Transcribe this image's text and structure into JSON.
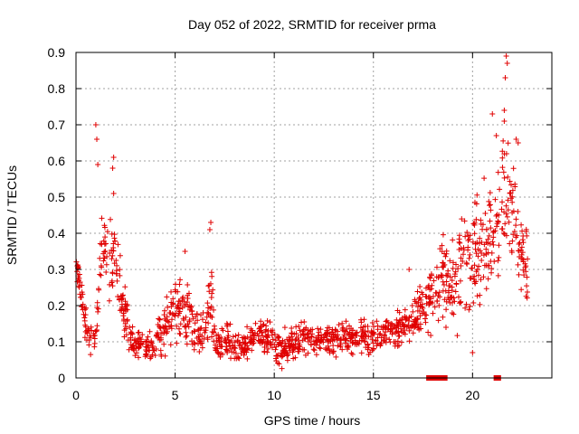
{
  "chart_data": {
    "type": "scatter",
    "title": "Day 052 of 2022, SRMTID for receiver prma",
    "xlabel": "GPS time / hours",
    "ylabel": "SRMTID / TECUs",
    "xlim": [
      0,
      24
    ],
    "ylim": [
      0,
      0.9
    ],
    "x_ticks": [
      0,
      5,
      10,
      15,
      20
    ],
    "x_tick_labels": [
      "0",
      "5",
      "10",
      "15",
      "20"
    ],
    "y_ticks": [
      0,
      0.1,
      0.2,
      0.3,
      0.4,
      0.5,
      0.6,
      0.7,
      0.8,
      0.9
    ],
    "y_tick_labels": [
      "0",
      "0.1",
      "0.2",
      "0.3",
      "0.4",
      "0.5",
      "0.6",
      "0.7",
      "0.8",
      "0.9"
    ],
    "grid": true,
    "marker": "+",
    "color": "#e00000",
    "envelope_hours": [
      0,
      0.3,
      0.6,
      1.0,
      1.3,
      1.7,
      2.0,
      2.3,
      2.7,
      3.0,
      3.5,
      4.0,
      4.5,
      5.0,
      5.5,
      6.0,
      6.5,
      6.8,
      7.0,
      7.5,
      8.0,
      8.5,
      9.0,
      9.5,
      10.0,
      10.5,
      11.0,
      11.5,
      12.0,
      13.0,
      14.0,
      15.0,
      16.0,
      16.5,
      17.0,
      17.5,
      18.0,
      18.5,
      19.0,
      19.5,
      20.0,
      20.5,
      21.0,
      21.5,
      21.7,
      22.0,
      22.5,
      22.8
    ],
    "envelope_mean": [
      0.32,
      0.22,
      0.1,
      0.12,
      0.38,
      0.3,
      0.36,
      0.22,
      0.12,
      0.1,
      0.08,
      0.1,
      0.14,
      0.2,
      0.18,
      0.14,
      0.12,
      0.22,
      0.1,
      0.1,
      0.08,
      0.09,
      0.11,
      0.12,
      0.09,
      0.08,
      0.1,
      0.11,
      0.1,
      0.11,
      0.11,
      0.11,
      0.13,
      0.14,
      0.17,
      0.2,
      0.22,
      0.28,
      0.26,
      0.3,
      0.34,
      0.38,
      0.38,
      0.48,
      0.55,
      0.45,
      0.33,
      0.3
    ],
    "envelope_spread": [
      0.04,
      0.05,
      0.05,
      0.06,
      0.08,
      0.1,
      0.08,
      0.08,
      0.06,
      0.04,
      0.03,
      0.04,
      0.06,
      0.08,
      0.08,
      0.06,
      0.06,
      0.1,
      0.05,
      0.05,
      0.04,
      0.04,
      0.04,
      0.04,
      0.04,
      0.04,
      0.04,
      0.04,
      0.04,
      0.04,
      0.04,
      0.04,
      0.04,
      0.04,
      0.05,
      0.06,
      0.08,
      0.1,
      0.12,
      0.14,
      0.14,
      0.14,
      0.14,
      0.16,
      0.18,
      0.14,
      0.1,
      0.1
    ],
    "points": [
      [
        1.0,
        0.7
      ],
      [
        1.05,
        0.66
      ],
      [
        1.1,
        0.59
      ],
      [
        1.9,
        0.61
      ],
      [
        1.85,
        0.58
      ],
      [
        1.9,
        0.51
      ],
      [
        5.5,
        0.35
      ],
      [
        6.8,
        0.43
      ],
      [
        6.75,
        0.41
      ],
      [
        21.7,
        0.89
      ],
      [
        21.75,
        0.87
      ],
      [
        21.65,
        0.83
      ],
      [
        21.0,
        0.73
      ],
      [
        21.6,
        0.74
      ],
      [
        21.6,
        0.71
      ],
      [
        22.2,
        0.66
      ],
      [
        22.3,
        0.65
      ],
      [
        21.2,
        0.67
      ],
      [
        16.8,
        0.3
      ],
      [
        20.0,
        0.07
      ]
    ],
    "gap_markers_hours": [
      17.8,
      17.9,
      18.1,
      18.3,
      18.4,
      18.6,
      21.2,
      21.3
    ]
  }
}
